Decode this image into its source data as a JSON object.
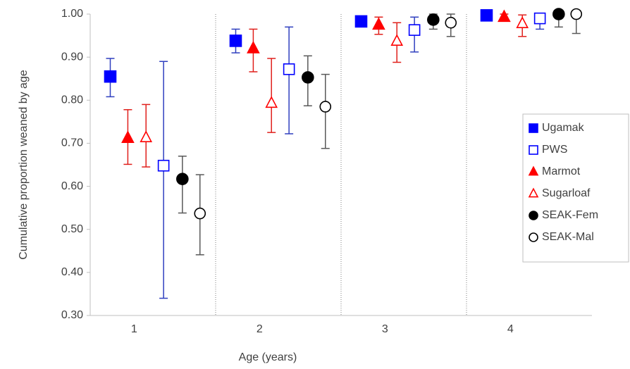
{
  "chart_data": {
    "type": "errorbar-scatter",
    "x_label": "Age (years)",
    "y_label": "Cumulative proportion weaned by age",
    "categories": [
      "1",
      "2",
      "3",
      "4"
    ],
    "ylim": [
      0.3,
      1.0
    ],
    "yticks": [
      {
        "value": 0.3,
        "label": "0.30"
      },
      {
        "value": 0.4,
        "label": "0.40"
      },
      {
        "value": 0.5,
        "label": "0.50"
      },
      {
        "value": 0.6,
        "label": "0.60"
      },
      {
        "value": 0.7,
        "label": "0.70"
      },
      {
        "value": 0.8,
        "label": "0.80"
      },
      {
        "value": 0.9,
        "label": "0.90"
      },
      {
        "value": 1.0,
        "label": "1.00"
      }
    ],
    "legend": "right",
    "series": [
      {
        "name": "Ugamak",
        "color": "#0000ff",
        "error_color": "#2f3fbf",
        "marker": "square",
        "filled": true,
        "values": [
          0.855,
          0.938,
          0.983,
          0.997
        ],
        "lower": [
          0.808,
          0.91,
          0.973,
          0.993
        ],
        "upper": [
          0.897,
          0.965,
          0.993,
          1.0
        ]
      },
      {
        "name": "PWS",
        "color": "#0000ff",
        "error_color": "#2f3fbf",
        "marker": "square",
        "filled": false,
        "values": [
          0.648,
          0.872,
          0.963,
          0.99
        ],
        "lower": [
          0.34,
          0.722,
          0.912,
          0.965
        ],
        "upper": [
          0.89,
          0.97,
          0.993,
          1.0
        ]
      },
      {
        "name": "Marmot",
        "color": "#ff0000",
        "error_color": "#e0201c",
        "marker": "triangle",
        "filled": true,
        "values": [
          0.712,
          0.92,
          0.975,
          0.993
        ],
        "lower": [
          0.651,
          0.866,
          0.953,
          0.985
        ],
        "upper": [
          0.778,
          0.965,
          0.993,
          1.0
        ]
      },
      {
        "name": "Sugarloaf",
        "color": "#ff0000",
        "error_color": "#e0201c",
        "marker": "triangle",
        "filled": false,
        "values": [
          0.713,
          0.793,
          0.937,
          0.978
        ],
        "lower": [
          0.645,
          0.725,
          0.888,
          0.948
        ],
        "upper": [
          0.79,
          0.897,
          0.98,
          0.998
        ]
      },
      {
        "name": "SEAK-Fem",
        "color": "#000000",
        "error_color": "#595959",
        "marker": "circle",
        "filled": true,
        "values": [
          0.617,
          0.853,
          0.987,
          1.0
        ],
        "lower": [
          0.538,
          0.787,
          0.965,
          0.97
        ],
        "upper": [
          0.67,
          0.903,
          1.0,
          1.0
        ]
      },
      {
        "name": "SEAK-Mal",
        "color": "#000000",
        "error_color": "#595959",
        "marker": "circle",
        "filled": false,
        "values": [
          0.537,
          0.785,
          0.98,
          1.0
        ],
        "lower": [
          0.441,
          0.688,
          0.948,
          0.955
        ],
        "upper": [
          0.627,
          0.86,
          1.0,
          1.0
        ]
      }
    ]
  }
}
